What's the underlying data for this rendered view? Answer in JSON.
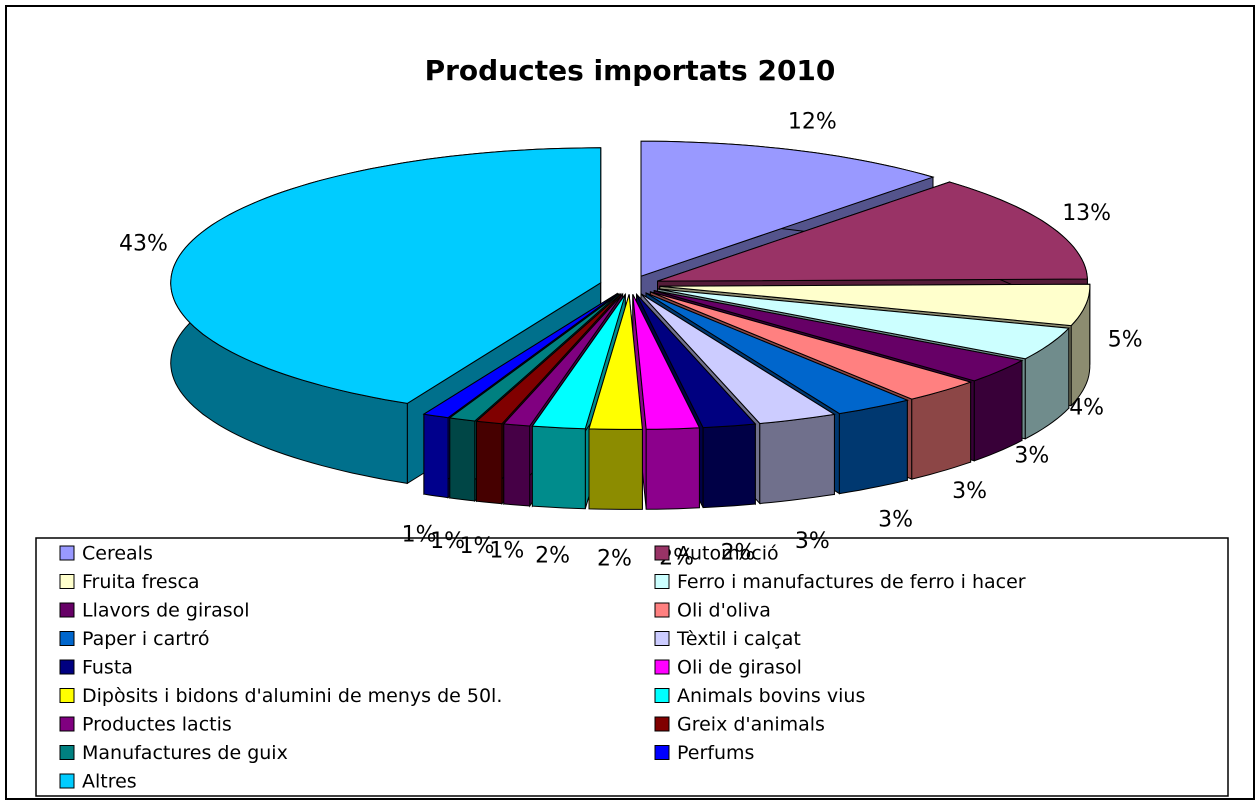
{
  "chart_data": {
    "type": "pie3d",
    "title": "Productes importats 2010",
    "categories": [
      "Cereals",
      "Automoció",
      "Fruita fresca",
      "Ferro i manufactures de ferro i hacer",
      "Llavors de girasol",
      "Oli d'oliva",
      "Paper i cartró",
      "Tèxtil i calçat",
      "Fusta",
      "Oli de girasol",
      "Dipòsits i bidons d'alumini de menys de 50l.",
      "Animals bovins vius",
      "Productes lactis",
      "Greix d'animals",
      "Manufactures de guix",
      "Perfums",
      "Altres"
    ],
    "values": [
      12,
      13,
      5,
      4,
      3,
      3,
      3,
      3,
      2,
      2,
      2,
      2,
      1,
      1,
      1,
      1,
      43
    ],
    "value_labels": [
      "12%",
      "13%",
      "5%",
      "4%",
      "3%",
      "3%",
      "3%",
      "3%",
      "2%",
      "2%",
      "2%",
      "2%",
      "1%",
      "1%",
      "1%",
      "1%",
      "43%"
    ],
    "colors": [
      "#9999ff",
      "#993366",
      "#ffffcc",
      "#ccffff",
      "#660066",
      "#ff8080",
      "#0066cc",
      "#ccccff",
      "#000080",
      "#ff00ff",
      "#ffff00",
      "#00ffff",
      "#800080",
      "#800000",
      "#008080",
      "#0000ff",
      "#00ccff"
    ],
    "legend": "bottom"
  }
}
